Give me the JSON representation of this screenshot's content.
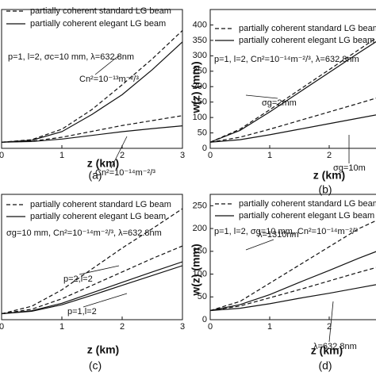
{
  "chart_data": [
    {
      "type": "line",
      "panel_label": "(a)",
      "xlabel": "z (km)",
      "params": "p=1, l=2, σc=10 mm, λ=632.8nm",
      "annotations": [
        "Cn²=10⁻¹³m⁻²/³",
        "Cn²=10⁻¹⁴m⁻²/³"
      ],
      "x": [
        0,
        0.5,
        1,
        1.5,
        2,
        2.5,
        3
      ],
      "xlim": [
        0,
        3
      ],
      "xticks": [
        0,
        1,
        2,
        3
      ],
      "ylim": [
        0,
        450
      ],
      "series": [
        {
          "name": "partially coherent standard LG beam",
          "color": "#111",
          "dash": true,
          "curves": [
            [
              20,
              28,
              62,
              126,
              206,
              290,
              382
            ],
            [
              20,
              23,
              36,
              55,
              74,
              90,
              106
            ]
          ]
        },
        {
          "name": "partially coherent elegant LG beam",
          "color": "#111",
          "dash": false,
          "curves": [
            [
              20,
              26,
              54,
              110,
              174,
              255,
              345
            ],
            [
              20,
              22,
              30,
              42,
              54,
              64,
              73
            ]
          ]
        }
      ]
    },
    {
      "type": "line",
      "panel_label": "(b)",
      "xlabel": "z (km)",
      "ylabel": "w(z) (mm)",
      "params": "p=1, l=2, Cn²=10⁻¹⁴m⁻²/³, λ=632.8nm",
      "annotations": [
        "σg=2mm",
        "σg=10m"
      ],
      "x": [
        0,
        0.5,
        1,
        1.5,
        2,
        2.5,
        3
      ],
      "xlim": [
        0,
        3
      ],
      "xticks": [
        0,
        1,
        2
      ],
      "ylim": [
        0,
        450
      ],
      "yticks": [
        0,
        50,
        100,
        150,
        200,
        250,
        300,
        350,
        400
      ],
      "series": [
        {
          "name": "partially coherent standard LG beam",
          "color": "#111",
          "dash": true,
          "curves": [
            [
              20,
              62,
              125,
              190,
              255,
              320,
              385
            ],
            [
              20,
              36,
              62,
              90,
              118,
              146,
              175
            ]
          ]
        },
        {
          "name": "partially coherent elegant LG beam",
          "color": "#111",
          "dash": false,
          "curves": [
            [
              20,
              58,
              118,
              182,
              246,
              310,
              372
            ],
            [
              20,
              28,
              44,
              62,
              80,
              98,
              116
            ]
          ]
        }
      ]
    },
    {
      "type": "line",
      "panel_label": "(c)",
      "xlabel": "z (km)",
      "params": "σg=10 mm, Cn²=10⁻¹⁴m⁻²/³, λ=632.8nm",
      "annotations": [
        "p=2,l=2",
        "p=1,l=2"
      ],
      "x": [
        0,
        0.5,
        1,
        1.5,
        2,
        2.5,
        3
      ],
      "xlim": [
        0,
        3
      ],
      "xticks": [
        0,
        1,
        2,
        3
      ],
      "ylim": [
        0,
        420
      ],
      "series": [
        {
          "name": "partially coherent standard LG beam",
          "color": "#111",
          "dash": true,
          "curves": [
            [
              20,
              45,
              100,
              170,
              240,
              305,
              372
            ],
            [
              20,
              35,
              70,
              115,
              160,
              205,
              247
            ]
          ]
        },
        {
          "name": "partially coherent elegant LG beam",
          "color": "#111",
          "dash": false,
          "curves": [
            [
              20,
              30,
              55,
              90,
              125,
              160,
              194
            ],
            [
              20,
              28,
              50,
              82,
              115,
              148,
              181
            ]
          ]
        }
      ]
    },
    {
      "type": "line",
      "panel_label": "(d)",
      "xlabel": "z (km)",
      "ylabel": "w(z) (mm)",
      "params": "p=1, l=2, σg=10 mm, Cn²=10⁻¹⁴m⁻²/³",
      "annotations": [
        "λ=1310nm",
        "λ=632.8nm"
      ],
      "x": [
        0,
        0.5,
        1,
        1.5,
        2,
        2.5,
        3
      ],
      "xlim": [
        0,
        3
      ],
      "xticks": [
        0,
        1,
        2
      ],
      "ylim": [
        0,
        275
      ],
      "yticks": [
        0,
        50,
        100,
        150,
        200,
        250
      ],
      "series": [
        {
          "name": "partially coherent standard LG beam",
          "color": "#111",
          "dash": true,
          "curves": [
            [
              20,
              40,
              80,
              120,
              160,
              200,
              230
            ],
            [
              20,
              30,
              48,
              66,
              85,
              104,
              122
            ]
          ]
        },
        {
          "name": "partially coherent elegant LG beam",
          "color": "#111",
          "dash": false,
          "curves": [
            [
              20,
              33,
              55,
              82,
              108,
              135,
              160
            ],
            [
              20,
              25,
              35,
              47,
              58,
              70,
              82
            ]
          ]
        }
      ]
    }
  ]
}
